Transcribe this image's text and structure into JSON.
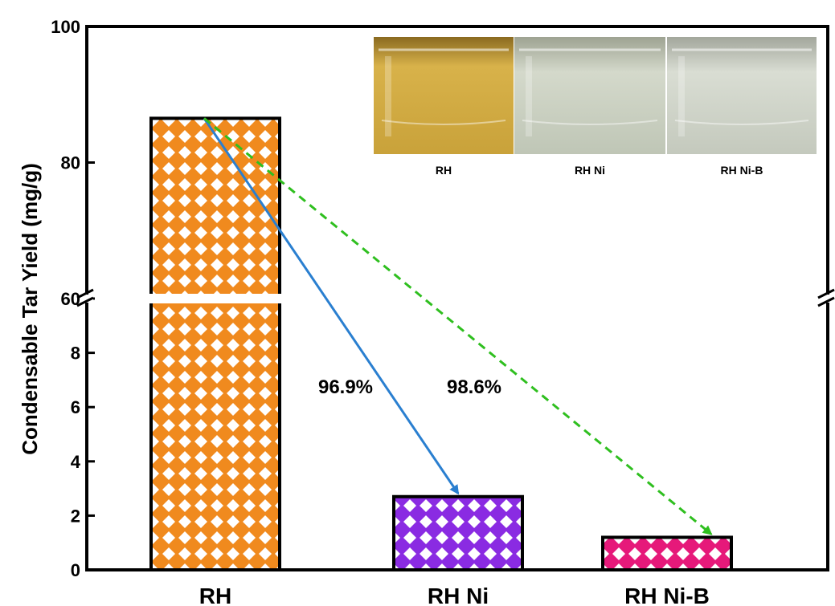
{
  "chart_data": {
    "type": "bar",
    "title": "",
    "xlabel": "",
    "ylabel": "Condensable Tar Yield (mg/g)",
    "categories": [
      "RH",
      "RH Ni",
      "RH Ni-B"
    ],
    "values": [
      86.5,
      2.7,
      1.2
    ],
    "y_axis_break": {
      "lower_range": [
        0,
        10
      ],
      "upper_range": [
        60,
        100
      ]
    },
    "yticks_lower": [
      "0",
      "2",
      "4",
      "6",
      "8"
    ],
    "yticks_upper": [
      "60",
      "80",
      "100"
    ],
    "bar_colors": [
      "#f08a1e",
      "#8a2be2",
      "#e6197a"
    ],
    "bar_pattern": "white diamond crosshatch",
    "annotations": [
      {
        "text": "96.9%",
        "from": "RH",
        "to": "RH Ni",
        "arrow_color": "#2a7fd0",
        "arrow_style": "solid"
      },
      {
        "text": "98.6%",
        "from": "RH",
        "to": "RH Ni-B",
        "arrow_color": "#2fbf1f",
        "arrow_style": "dashed"
      }
    ],
    "inset": {
      "panels": [
        {
          "label": "RH",
          "liquid_color": "#c9a23a"
        },
        {
          "label": "RH Ni",
          "liquid_color": "#c8cfc0"
        },
        {
          "label": "RH Ni-B",
          "liquid_color": "#cdd2c8"
        }
      ]
    },
    "grid": false,
    "legend": "none"
  }
}
